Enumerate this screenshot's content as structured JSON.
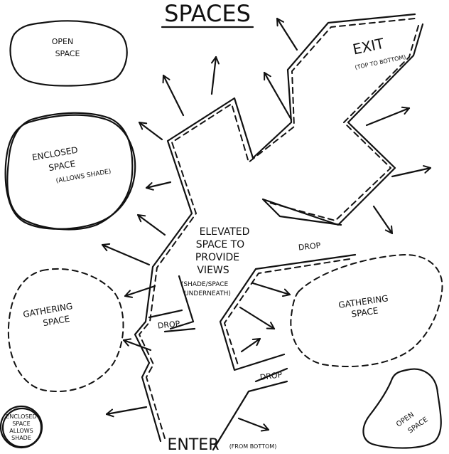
{
  "title": "SPACES",
  "labels": {
    "open_space_top": [
      "OPEN",
      "SPACE"
    ],
    "enclosed_space_large": [
      "ENCLOSED",
      "SPACE",
      "(ALLOWS SHADE)"
    ],
    "gathering_space_left": [
      "GATHERING",
      "SPACE"
    ],
    "enclosed_space_small": [
      "ENCLOSED",
      "SPACE",
      "ALLOWS",
      "SHADE"
    ],
    "elevated_space": [
      "ELEVATED",
      "SPACE TO",
      "PROVIDE",
      "VIEWS"
    ],
    "elevated_note": [
      "(SHADE/SPACE",
      "UNDERNEATH)"
    ],
    "gathering_space_right": [
      "GATHERING",
      "SPACE"
    ],
    "open_space_bottom": [
      "OPEN",
      "SPACE"
    ],
    "exit": "EXIT",
    "exit_note": "(TOP TO BOTTOM)",
    "enter": "ENTER",
    "enter_note": "(FROM BOTTOM)",
    "drop_top": "DROP",
    "drop_left": "DROP",
    "drop_bottom": "DROP"
  },
  "colors": {
    "ink": "#111111",
    "paper": "#ffffff"
  }
}
